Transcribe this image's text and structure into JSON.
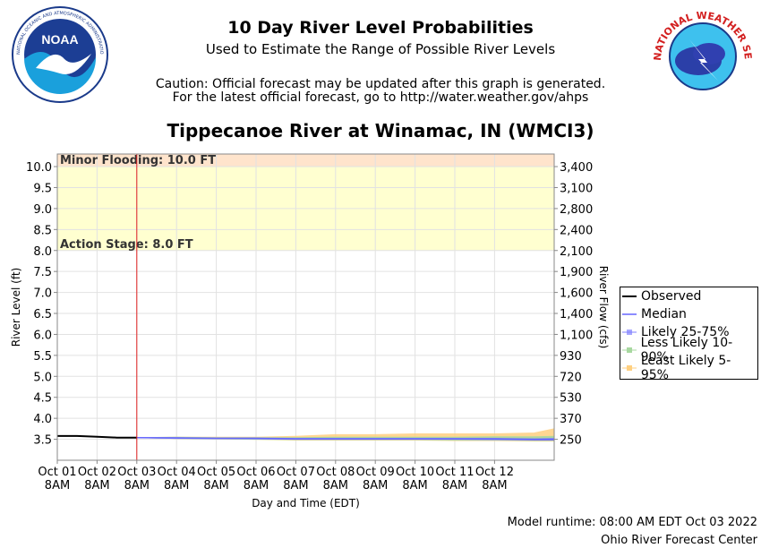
{
  "header": {
    "title": "10 Day River Level Probabilities",
    "subtitle": "Used to Estimate the Range of Possible River Levels",
    "caution_line1": "Caution: Official forecast may be updated after this graph is generated.",
    "caution_line2": "For the latest official forecast, go to http://water.weather.gov/ahps",
    "station": "Tippecanoe River at Winamac, IN (WMCI3)",
    "noaa_logo_text": "NATIONAL OCEANIC AND ATMOSPHERIC ADMINISTRATION · U.S. DEPARTMENT OF COMMERCE",
    "noaa_logo_label": "NOAA",
    "nws_logo_text": "NATIONAL WEATHER SERVICE"
  },
  "footer": {
    "model_runtime": "Model runtime: 08:00 AM EDT Oct 03 2022",
    "center": "Ohio River Forecast Center"
  },
  "chart_data": {
    "type": "area",
    "xlabel": "Day and Time (EDT)",
    "ylabel": "River Level (ft)",
    "y2label": "River Flow (cfs)",
    "ylim": [
      3.0,
      10.3
    ],
    "xlim_days": [
      0,
      12.5
    ],
    "yticks": [
      "10.0",
      "9.5",
      "9.0",
      "8.5",
      "8.0",
      "7.5",
      "7.0",
      "6.5",
      "6.0",
      "5.5",
      "5.0",
      "4.5",
      "4.0",
      "3.5"
    ],
    "ytick_values": [
      10.0,
      9.5,
      9.0,
      8.5,
      8.0,
      7.5,
      7.0,
      6.5,
      6.0,
      5.5,
      5.0,
      4.5,
      4.0,
      3.5
    ],
    "y2ticks": [
      "3,400",
      "3,100",
      "2,800",
      "2,400",
      "2,100",
      "1,900",
      "1,600",
      "1,400",
      "1,100",
      "930",
      "720",
      "530",
      "370",
      "250"
    ],
    "xticks": [
      {
        "day": "Oct 01",
        "time": "8AM"
      },
      {
        "day": "Oct 02",
        "time": "8AM"
      },
      {
        "day": "Oct 03",
        "time": "8AM"
      },
      {
        "day": "Oct 04",
        "time": "8AM"
      },
      {
        "day": "Oct 05",
        "time": "8AM"
      },
      {
        "day": "Oct 06",
        "time": "8AM"
      },
      {
        "day": "Oct 07",
        "time": "8AM"
      },
      {
        "day": "Oct 08",
        "time": "8AM"
      },
      {
        "day": "Oct 09",
        "time": "8AM"
      },
      {
        "day": "Oct 10",
        "time": "8AM"
      },
      {
        "day": "Oct 11",
        "time": "8AM"
      },
      {
        "day": "Oct 12",
        "time": "8AM"
      }
    ],
    "flood_stages": [
      {
        "label": "Minor Flooding: 10.0 FT",
        "value": 10.0,
        "color": "#ffe4cc"
      },
      {
        "label": "Action Stage: 8.0 FT",
        "value": 8.0,
        "color": "#ffffd0"
      }
    ],
    "forecast_start_day": 2.0,
    "series": [
      {
        "name": "Observed",
        "color": "#000000",
        "x": [
          0,
          0.5,
          1.0,
          1.5,
          2.0
        ],
        "y": [
          3.58,
          3.58,
          3.56,
          3.54,
          3.54
        ]
      },
      {
        "name": "Median",
        "color": "#6666ff",
        "x": [
          2.0,
          3.0,
          4.0,
          5.0,
          6.0,
          7.0,
          8.0,
          9.0,
          10.0,
          11.0,
          12.0,
          12.5
        ],
        "y": [
          3.54,
          3.53,
          3.52,
          3.52,
          3.51,
          3.51,
          3.51,
          3.51,
          3.51,
          3.51,
          3.5,
          3.5
        ]
      },
      {
        "name": "Likely 25-75%",
        "color": "#8080ff",
        "x": [
          2.0,
          3.0,
          4.0,
          5.0,
          6.0,
          7.0,
          8.0,
          9.0,
          10.0,
          11.0,
          12.0,
          12.5
        ],
        "low": [
          3.54,
          3.52,
          3.52,
          3.51,
          3.5,
          3.5,
          3.5,
          3.5,
          3.5,
          3.49,
          3.48,
          3.48
        ],
        "high": [
          3.54,
          3.54,
          3.53,
          3.53,
          3.52,
          3.52,
          3.52,
          3.52,
          3.52,
          3.52,
          3.51,
          3.52
        ]
      },
      {
        "name": "Less Likely 10-90%",
        "color": "#a8d8a0",
        "x": [
          2.0,
          3.0,
          4.0,
          5.0,
          6.0,
          7.0,
          8.0,
          9.0,
          10.0,
          11.0,
          12.0,
          12.5
        ],
        "low": [
          3.54,
          3.52,
          3.51,
          3.5,
          3.49,
          3.49,
          3.49,
          3.49,
          3.48,
          3.48,
          3.47,
          3.47
        ],
        "high": [
          3.54,
          3.55,
          3.54,
          3.54,
          3.54,
          3.55,
          3.55,
          3.55,
          3.55,
          3.56,
          3.56,
          3.57
        ]
      },
      {
        "name": "Least Likely 5-95%",
        "color": "#ffd080",
        "x": [
          2.0,
          3.0,
          4.0,
          5.0,
          6.0,
          7.0,
          8.0,
          9.0,
          10.0,
          11.0,
          12.0,
          12.5
        ],
        "low": [
          3.54,
          3.52,
          3.51,
          3.5,
          3.48,
          3.48,
          3.48,
          3.48,
          3.47,
          3.47,
          3.46,
          3.46
        ],
        "high": [
          3.54,
          3.55,
          3.55,
          3.55,
          3.57,
          3.61,
          3.61,
          3.63,
          3.63,
          3.63,
          3.65,
          3.75
        ]
      }
    ],
    "legend_position": "right",
    "grid": true
  }
}
